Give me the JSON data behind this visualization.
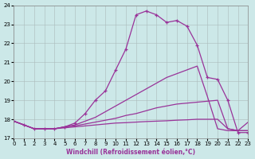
{
  "xlabel": "Windchill (Refroidissement éolien,°C)",
  "bg_color": "#cce8e8",
  "line_color": "#993399",
  "grid_color": "#aabbbb",
  "xlim": [
    0,
    23
  ],
  "ylim": [
    17,
    24
  ],
  "xticks": [
    0,
    1,
    2,
    3,
    4,
    5,
    6,
    7,
    8,
    9,
    10,
    11,
    12,
    13,
    14,
    15,
    16,
    17,
    18,
    19,
    20,
    21,
    22,
    23
  ],
  "yticks": [
    17,
    18,
    19,
    20,
    21,
    22,
    23,
    24
  ],
  "series": [
    {
      "x": [
        0,
        1,
        2,
        3,
        4,
        5,
        6,
        7,
        8,
        9,
        10,
        11,
        12,
        13,
        14,
        15,
        16,
        17,
        18,
        19,
        20,
        21,
        22,
        23
      ],
      "y": [
        17.9,
        17.7,
        17.5,
        17.5,
        17.5,
        17.6,
        17.8,
        18.3,
        19.0,
        19.5,
        20.6,
        21.7,
        23.5,
        23.7,
        23.5,
        23.1,
        23.2,
        22.9,
        21.9,
        20.2,
        20.1,
        19.0,
        17.3,
        17.3
      ],
      "marker": true,
      "lw": 0.9
    },
    {
      "x": [
        0,
        1,
        2,
        3,
        4,
        5,
        6,
        7,
        8,
        9,
        10,
        11,
        12,
        13,
        14,
        15,
        16,
        17,
        18,
        19,
        20,
        21,
        22,
        23
      ],
      "y": [
        17.9,
        17.7,
        17.5,
        17.5,
        17.5,
        17.6,
        17.7,
        17.9,
        18.1,
        18.4,
        18.7,
        19.0,
        19.3,
        19.6,
        19.9,
        20.2,
        20.4,
        20.6,
        20.8,
        19.2,
        17.5,
        17.4,
        17.4,
        17.4
      ],
      "marker": false,
      "lw": 0.9
    },
    {
      "x": [
        0,
        1,
        2,
        3,
        4,
        5,
        6,
        7,
        8,
        9,
        10,
        11,
        12,
        13,
        14,
        15,
        16,
        17,
        18,
        19,
        20,
        21,
        22,
        23
      ],
      "y": [
        17.9,
        17.7,
        17.5,
        17.5,
        17.5,
        17.6,
        17.65,
        17.75,
        17.85,
        17.95,
        18.05,
        18.2,
        18.3,
        18.45,
        18.6,
        18.7,
        18.8,
        18.85,
        18.9,
        18.95,
        19.0,
        17.5,
        17.4,
        17.4
      ],
      "marker": false,
      "lw": 0.9
    },
    {
      "x": [
        0,
        1,
        2,
        3,
        4,
        5,
        6,
        7,
        8,
        9,
        10,
        11,
        12,
        13,
        14,
        15,
        16,
        17,
        18,
        19,
        20,
        21,
        22,
        23
      ],
      "y": [
        17.9,
        17.7,
        17.5,
        17.5,
        17.5,
        17.55,
        17.6,
        17.65,
        17.7,
        17.75,
        17.8,
        17.82,
        17.85,
        17.88,
        17.9,
        17.92,
        17.95,
        17.97,
        18.0,
        18.0,
        18.0,
        17.5,
        17.4,
        17.85
      ],
      "marker": false,
      "lw": 0.9
    }
  ],
  "xlabel_fontsize": 5.5,
  "tick_labelsize": 5.0,
  "fig_w": 3.2,
  "fig_h": 2.0,
  "dpi": 100
}
